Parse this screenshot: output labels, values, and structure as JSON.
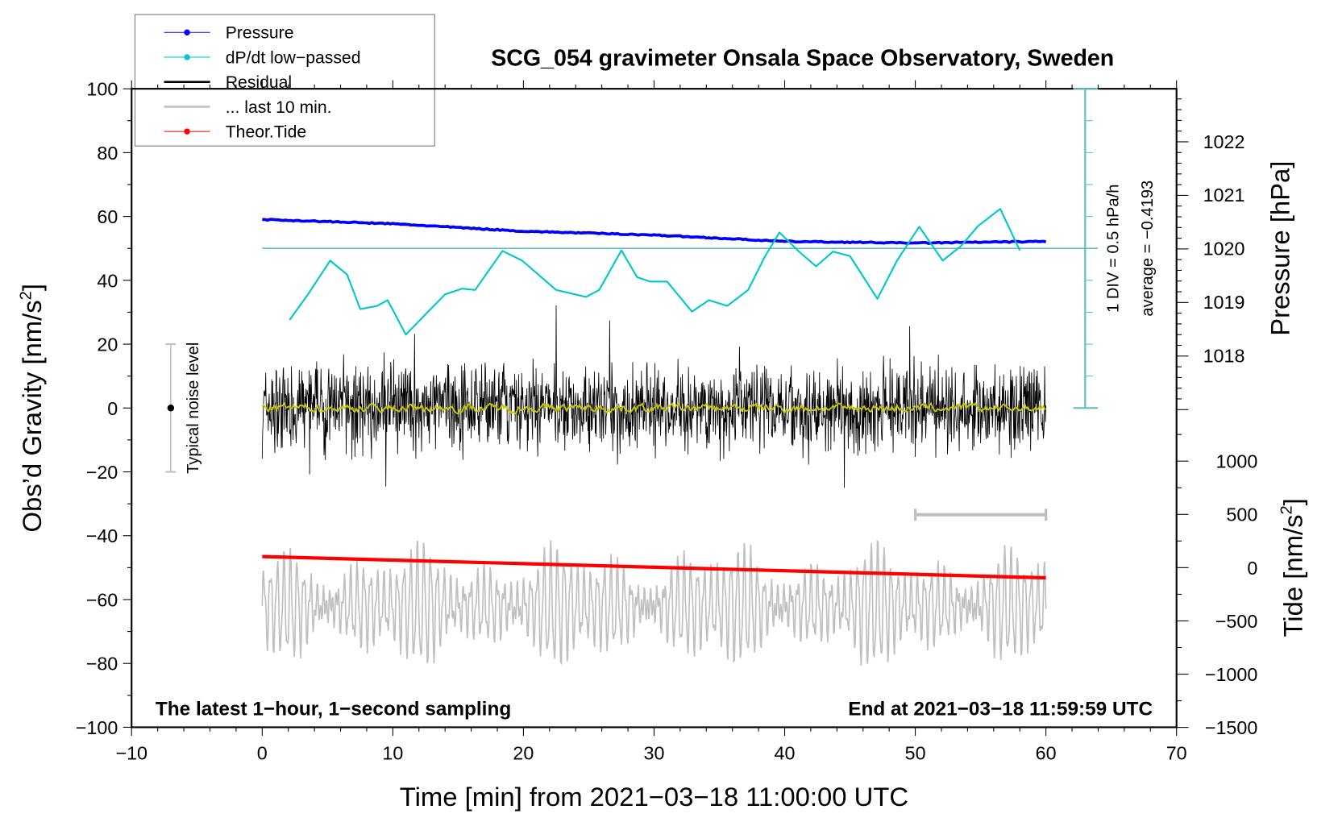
{
  "chart_data": {
    "type": "line",
    "title": "SCG_054 gravimeter Onsala Space Observatory, Sweden",
    "xlabel": "Time [min] from 2021−03−18 11:00:00 UTC",
    "ylabel_left": "Obs’d Gravity [nm/s",
    "ylabel_left_sup": "2",
    "ylabel_left_end": "]",
    "ylabel_right_pressure": "Pressure [hPa]",
    "ylabel_right_tide": "Tide [nm/s",
    "ylabel_right_tide_sup": "2",
    "ylabel_right_tide_end": "]",
    "xlim": [
      -10,
      70
    ],
    "ylim": [
      -100,
      100
    ],
    "x_ticks": [
      "−10",
      "0",
      "10",
      "20",
      "30",
      "40",
      "50",
      "60",
      "70"
    ],
    "y_ticks": [
      "100",
      "80",
      "60",
      "40",
      "20",
      "0",
      "−20",
      "−40",
      "−60",
      "−80",
      "−100"
    ],
    "pressure_ticks": [
      "1022",
      "1021",
      "1020",
      "1019",
      "1018"
    ],
    "tide_ticks": [
      "1000",
      "500",
      "0",
      "−500",
      "−1000",
      "−1500"
    ],
    "legend": {
      "placement": "top-left",
      "entries": [
        {
          "label": "Pressure",
          "color": "#0000ff"
        },
        {
          "label": "dP/dt low−passed",
          "color": "#00c8c8"
        },
        {
          "label": "Residual",
          "color": "#000000"
        },
        {
          "label": "... last 10 min.",
          "color": "#c0c0c0"
        },
        {
          "label": "Theor.Tide",
          "color": "#ff0000"
        }
      ]
    },
    "annotations": {
      "left_bottom": "The latest 1−hour, 1−second sampling",
      "right_bottom": "End at 2021−03−18 11:59:59 UTC",
      "noise_label": "Typical noise level",
      "dpdt_scale": "1 DIV = 0.5 hPa/h",
      "dpdt_average": "average = −0.4193"
    },
    "series": {
      "pressure_hPa": {
        "x": [
          0,
          10,
          20,
          30,
          40,
          50,
          60
        ],
        "y": [
          1020.54,
          1020.46,
          1020.32,
          1020.25,
          1020.13,
          1020.1,
          1020.13
        ]
      },
      "dpdt_hPa_per_h": {
        "average": -0.4193,
        "x": [
          2.1,
          3.5,
          5.2,
          6.5,
          7.5,
          8.8,
          9.6,
          11.0,
          12.7,
          14.0,
          15.3,
          16.3,
          18.4,
          19.9,
          22.5,
          24.8,
          25.8,
          27.5,
          28.7,
          29.7,
          31.0,
          32.9,
          34.2,
          35.6,
          37.2,
          38.5,
          39.6,
          41.1,
          42.4,
          43.7,
          45.0,
          47.1,
          48.6,
          50.3,
          52.1,
          53.5,
          54.8,
          56.5,
          58.0
        ],
        "y": [
          -1.54,
          -1.14,
          -0.61,
          -0.83,
          -1.37,
          -1.32,
          -1.23,
          -1.77,
          -1.41,
          -1.14,
          -1.05,
          -1.07,
          -0.46,
          -0.61,
          -1.07,
          -1.18,
          -1.07,
          -0.45,
          -0.87,
          -0.94,
          -0.94,
          -1.41,
          -1.23,
          -1.32,
          -1.07,
          -0.54,
          -0.17,
          -0.47,
          -0.7,
          -0.47,
          -0.54,
          -1.21,
          -0.61,
          -0.08,
          -0.61,
          -0.38,
          -0.07,
          0.2,
          -0.45
        ]
      },
      "theor_tide_nm_s2": {
        "x": [
          0,
          60
        ],
        "y": [
          104,
          -96
        ]
      },
      "residual_nm_s2": {
        "x_range": [
          0,
          60
        ],
        "typical_amplitude": 12,
        "peak": 35,
        "seed": 7
      },
      "residual_lowpassed_nm_s2": {
        "x_range": [
          0,
          60
        ],
        "typical_amplitude": 1.2
      },
      "last_10_min_nm_s2": {
        "x_range": [
          0,
          60
        ],
        "center": -62,
        "typical_amplitude": 18,
        "window_minutes": [
          50,
          60
        ]
      },
      "noise_level_bar": {
        "x": -7,
        "y": [
          -20,
          20
        ],
        "center": 0
      }
    }
  }
}
